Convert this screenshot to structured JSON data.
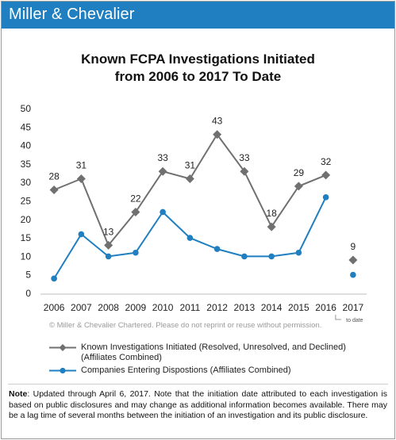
{
  "brand": {
    "name": "Miller & Chevalier"
  },
  "title": {
    "line1": "Known FCPA Investigations Initiated",
    "line2": "from 2006 to 2017 To Date"
  },
  "copyright": "© Miller & Chevalier Chartered. Please do not reprint or reuse without permission.",
  "note": {
    "label": "Note",
    "text": ": Updated through April 6, 2017. Note that the initiation date attributed to each investigation is based on public disclosures and may change as additional information becomes available. There may be a lag time of several months between the initiation of an investigation and its public disclosure."
  },
  "colors": {
    "brand": "#1f7fc0",
    "investigations": "#707070",
    "companies": "#1f7fc0"
  },
  "chart_data": {
    "type": "line",
    "categories": [
      "2006",
      "2007",
      "2008",
      "2009",
      "2010",
      "2011",
      "2012",
      "2013",
      "2014",
      "2015",
      "2016",
      "2017"
    ],
    "category_sublabels": {
      "2017": "to date"
    },
    "ylim": [
      0,
      50
    ],
    "yticks": [
      0,
      5,
      10,
      15,
      20,
      25,
      30,
      35,
      40,
      45,
      50
    ],
    "grid": false,
    "legend_position": "bottom",
    "series": [
      {
        "name": "Known Investigations Initiated (Resolved, Unresolved, and Declined) (Affiliates Combined)",
        "marker": "diamond",
        "values": [
          28,
          31,
          13,
          22,
          33,
          31,
          43,
          33,
          18,
          29,
          32,
          9
        ],
        "labels": [
          "28",
          "31",
          "13",
          "22",
          "33",
          "31",
          "43",
          "33",
          "18",
          "29",
          "32",
          "9"
        ],
        "connected_through": "2016"
      },
      {
        "name": "Companies Entering Dispostions (Affiliates Combined)",
        "marker": "circle",
        "values": [
          4,
          16,
          10,
          11,
          22,
          15,
          12,
          10,
          10,
          11,
          26,
          5
        ],
        "connected_through": "2016"
      }
    ]
  }
}
